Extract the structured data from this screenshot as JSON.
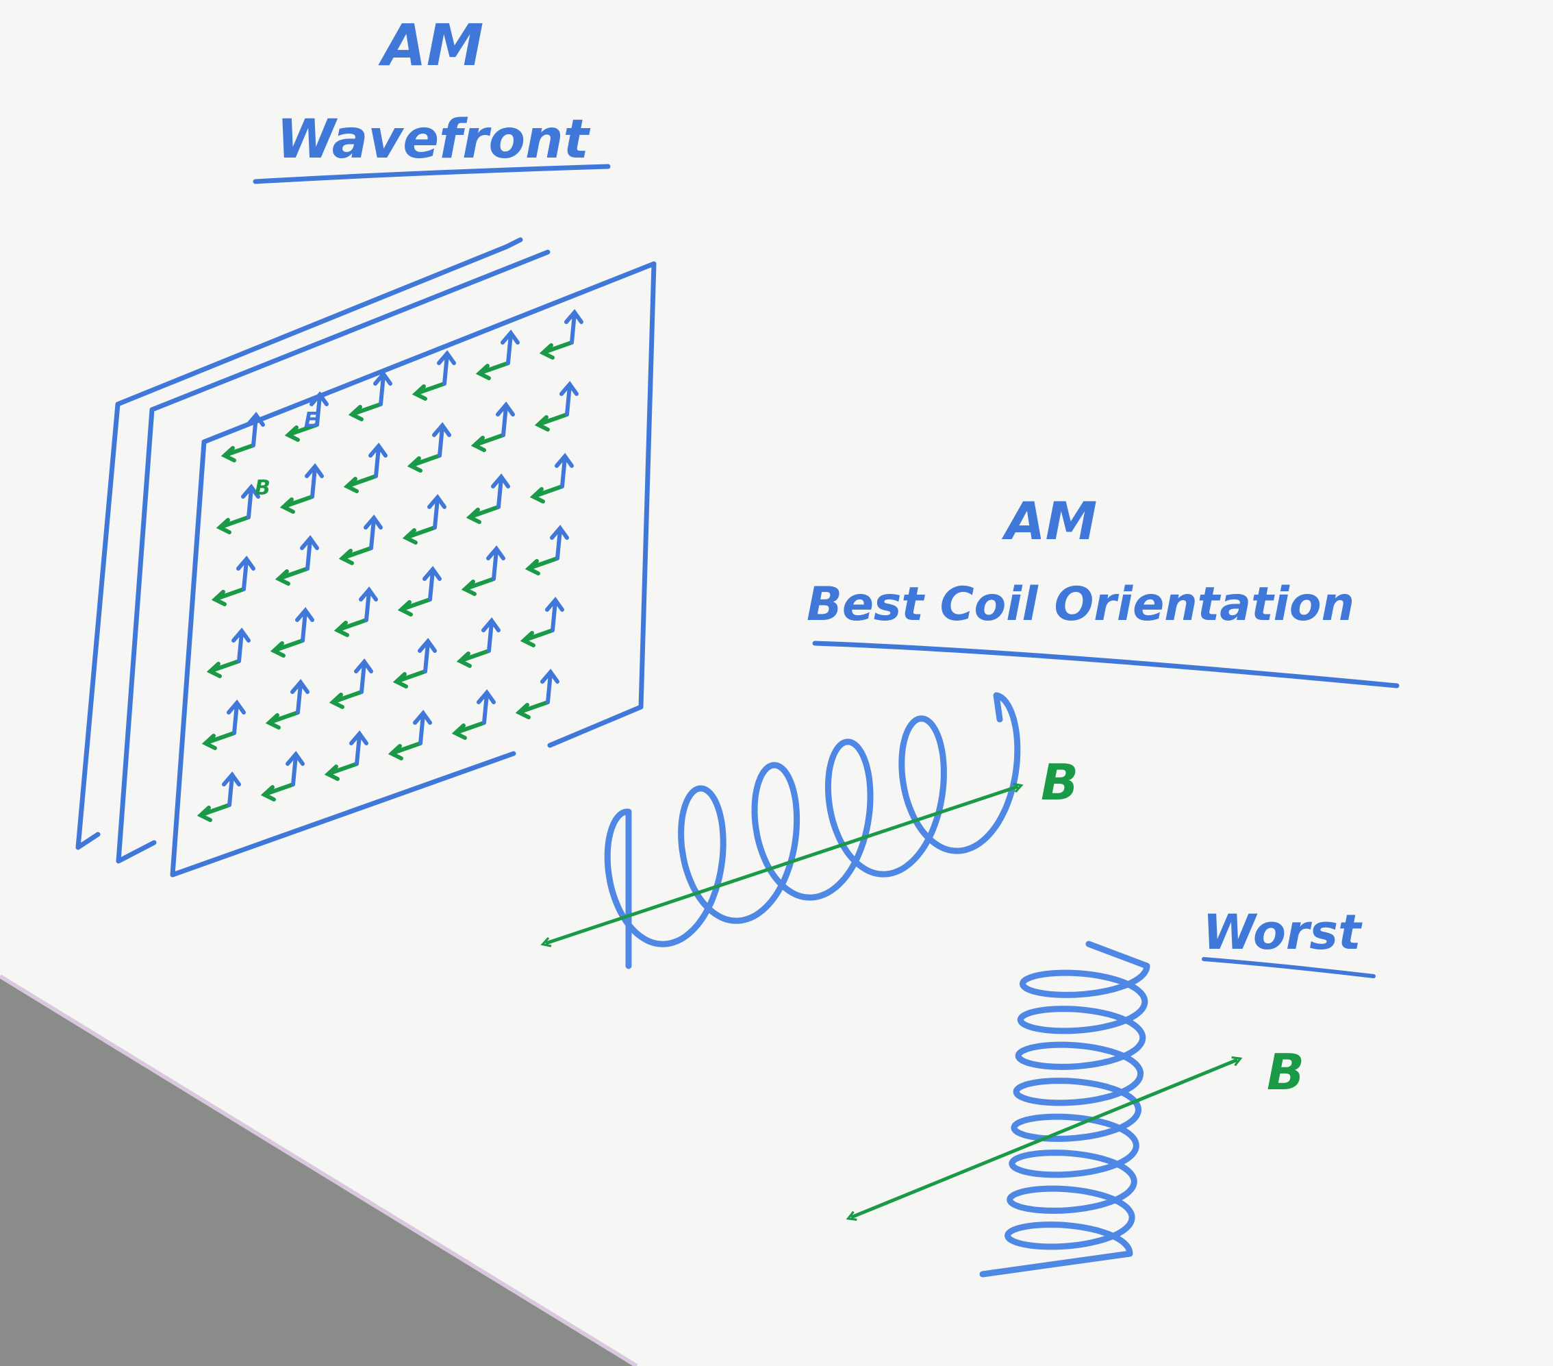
{
  "board": {
    "wavefront": {
      "title_line1": "AM",
      "title_line2": "Wavefront",
      "e_label": "E",
      "b_label": "B"
    },
    "best": {
      "title_line1": "AM",
      "title_line2": "Best Coil Orientation",
      "b_label": "B"
    },
    "worst": {
      "title": "Worst",
      "b_label": "B"
    }
  },
  "colors": {
    "board": "#f6f7f5",
    "floor": "#8a8c89",
    "marker_blue": "#3f78d9",
    "marker_green": "#1a9a46"
  }
}
